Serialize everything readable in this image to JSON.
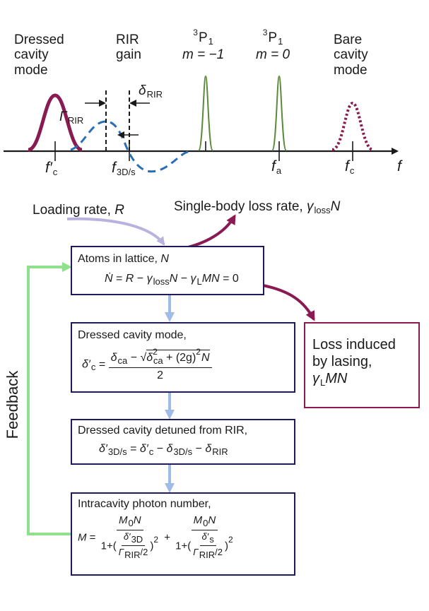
{
  "spectrum": {
    "dressed_mode": [
      "Dressed",
      "cavity",
      "mode"
    ],
    "rir_gain": [
      "RIR",
      "gain"
    ],
    "p1_left": {
      "level": "P",
      "sup": "3",
      "sub": "1",
      "m": "m = −1"
    },
    "p1_right": {
      "level": "P",
      "sup": "3",
      "sub": "1",
      "m": "m = 0"
    },
    "bare_mode": [
      "Bare",
      "cavity",
      "mode"
    ],
    "gamma_rir": {
      "sym": "Γ",
      "sub": "RIR"
    },
    "delta_rir": {
      "sym": "δ",
      "sub": "RIR"
    },
    "axis_f": "f",
    "ticks": {
      "fc_prime": {
        "sym": "f′",
        "sub": "c"
      },
      "f3d": {
        "sym": "f",
        "sub": "3D/s"
      },
      "fa": {
        "sym": "f",
        "sub": "a"
      },
      "fc": {
        "sym": "f",
        "sub": "c"
      }
    },
    "colors": {
      "dressed": "#8a1a52",
      "rir": "#2a6fb5",
      "atom": "#5a8a3a",
      "bare": "#8a1a52"
    }
  },
  "flow": {
    "loading": {
      "text": "Loading rate, ",
      "var": "R"
    },
    "single_body": {
      "text": "Single-body loss rate, ",
      "var": "γ",
      "sub": "loss",
      "var2": "N"
    },
    "atoms": {
      "title": "Atoms in lattice, ",
      "title_var": "N",
      "eq": {
        "lhs": "Ṅ",
        "r": "R",
        "g1": "γ",
        "g1sub": "loss",
        "n": "N",
        "g2": "γ",
        "g2sub": "L",
        "mn": "MN",
        "zero": "0"
      }
    },
    "loss_by_lasing": {
      "line1": "Loss induced",
      "line2": "by lasing,",
      "var": "γ",
      "sub": "L",
      "var2": "MN"
    },
    "dressed": {
      "title": "Dressed cavity mode,",
      "lhs": "δ′",
      "lhs_sub": "c",
      "num_a": "δ",
      "num_a_sub": "ca",
      "rad_a": "δ",
      "rad_a_sup": "2",
      "rad_a_sub": "ca",
      "rad_b": "(2g)",
      "rad_b_sup": "2",
      "rad_b_var": "N",
      "den": "2"
    },
    "detuned": {
      "title": "Dressed cavity detuned from RIR,",
      "lhs": "δ′",
      "lhs_sub": "3D/s",
      "t1": "δ′",
      "t1_sub": "c",
      "t2": "δ",
      "t2_sub": "3D/s",
      "t3": "δ",
      "t3_sub": "RIR"
    },
    "photon": {
      "title": "Intracavity photon number,",
      "lhs": "M",
      "num": "M",
      "num_sub": "0",
      "num_var": "N",
      "one": "1+",
      "d1": "δ′",
      "d1_sub": "3D",
      "d2": "δ′",
      "d2_sub": "s",
      "g": "Γ",
      "g_sub": "RIR",
      "half": "/2",
      "sq": "2"
    },
    "feedback": "Feedback"
  }
}
